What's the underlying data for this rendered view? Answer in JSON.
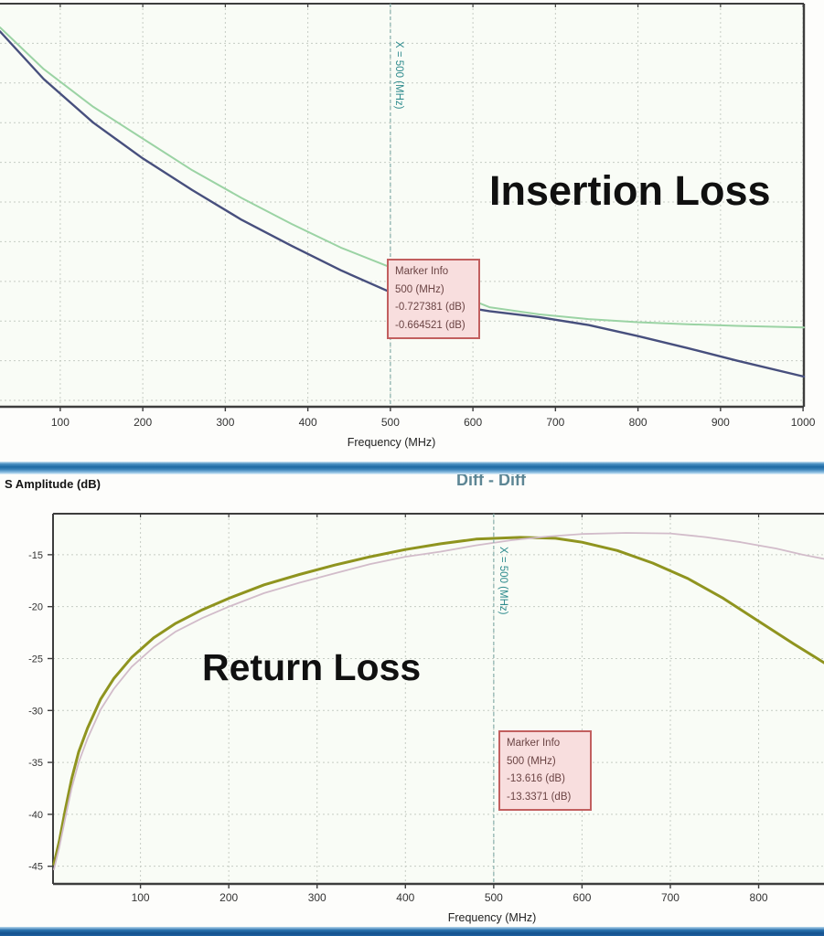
{
  "window": {
    "divider_bar_color": "#1d6aa4",
    "bottom_bar_color": "#15528f",
    "plot_background": "#f9fcf6",
    "grid_color": "#c6ccc4",
    "axis_color": "#3d3d3d",
    "marker_line_color": "#8fb4b0",
    "marker_text_color": "#2e8b8d",
    "marker_box_bg": "#f8dede",
    "marker_box_border": "#c25f5f"
  },
  "chart_data": [
    {
      "type": "line",
      "id": "insertion-loss",
      "overlay_title": "Insertion Loss",
      "xlabel": "Frequency (MHz)",
      "x_ticks": [
        100,
        200,
        300,
        400,
        500,
        600,
        700,
        800,
        900,
        1000
      ],
      "x_range": [
        27,
        1001
      ],
      "y_range": [
        0,
        -1.016
      ],
      "grid_y": [
        -0.1,
        -0.2,
        -0.3,
        -0.4,
        -0.5,
        -0.6,
        -0.7,
        -0.8,
        -0.9,
        -1.0
      ],
      "grid_on": true,
      "legend": "none",
      "marker": {
        "x": 500,
        "line_label": "X = 500 (MHz)",
        "info_lines": [
          "Marker Info",
          "500 (MHz)",
          "-0.727381 (dB)",
          "-0.664521 (dB)"
        ]
      },
      "series": [
        {
          "name": "trace-navy",
          "color": "#474f7d",
          "width": 2.4,
          "points": [
            [
              27,
              -0.07
            ],
            [
              80,
              -0.19
            ],
            [
              140,
              -0.3
            ],
            [
              200,
              -0.39
            ],
            [
              260,
              -0.47
            ],
            [
              320,
              -0.545
            ],
            [
              380,
              -0.61
            ],
            [
              440,
              -0.672
            ],
            [
              500,
              -0.7274
            ],
            [
              560,
              -0.755
            ],
            [
              620,
              -0.775
            ],
            [
              680,
              -0.79
            ],
            [
              740,
              -0.81
            ],
            [
              800,
              -0.838
            ],
            [
              860,
              -0.868
            ],
            [
              920,
              -0.9
            ],
            [
              1001,
              -0.94
            ]
          ]
        },
        {
          "name": "trace-green",
          "color": "#9bd3a4",
          "width": 2,
          "points": [
            [
              27,
              -0.06
            ],
            [
              80,
              -0.165
            ],
            [
              140,
              -0.26
            ],
            [
              200,
              -0.34
            ],
            [
              260,
              -0.42
            ],
            [
              320,
              -0.49
            ],
            [
              380,
              -0.555
            ],
            [
              440,
              -0.615
            ],
            [
              500,
              -0.6645
            ],
            [
              560,
              -0.715
            ],
            [
              620,
              -0.765
            ],
            [
              680,
              -0.783
            ],
            [
              740,
              -0.795
            ],
            [
              800,
              -0.803
            ],
            [
              860,
              -0.808
            ],
            [
              920,
              -0.812
            ],
            [
              1001,
              -0.816
            ]
          ]
        }
      ]
    },
    {
      "type": "line",
      "id": "return-loss",
      "title": "Diff - Diff",
      "overlay_title": "Return Loss",
      "ylabel": "S Amplitude (dB)",
      "xlabel": "Frequency (MHz)",
      "x_ticks": [
        100,
        200,
        300,
        400,
        500,
        600,
        700,
        800
      ],
      "y_ticks": [
        -15,
        -20,
        -25,
        -30,
        -35,
        -40,
        -45
      ],
      "x_range": [
        1,
        874
      ],
      "y_range": [
        -11.05,
        -46.7
      ],
      "grid_on": true,
      "legend": "none",
      "marker": {
        "x": 500,
        "line_label": "X = 500 (MHz)",
        "info_lines": [
          "Marker Info",
          "500 (MHz)",
          "-13.616 (dB)",
          "-13.3371 (dB)"
        ]
      },
      "series": [
        {
          "name": "trace-olive",
          "color": "#8f941f",
          "width": 3,
          "points": [
            [
              2,
              -44.8
            ],
            [
              8,
              -42.6
            ],
            [
              15,
              -39.5
            ],
            [
              22,
              -36.6
            ],
            [
              30,
              -34.0
            ],
            [
              40,
              -31.7
            ],
            [
              55,
              -28.9
            ],
            [
              70,
              -26.9
            ],
            [
              90,
              -24.9
            ],
            [
              115,
              -23.0
            ],
            [
              140,
              -21.6
            ],
            [
              170,
              -20.3
            ],
            [
              200,
              -19.2
            ],
            [
              240,
              -17.9
            ],
            [
              280,
              -16.9
            ],
            [
              320,
              -16.0
            ],
            [
              360,
              -15.2
            ],
            [
              400,
              -14.5
            ],
            [
              440,
              -13.95
            ],
            [
              480,
              -13.5
            ],
            [
              530,
              -13.33
            ],
            [
              570,
              -13.42
            ],
            [
              600,
              -13.8
            ],
            [
              640,
              -14.6
            ],
            [
              680,
              -15.8
            ],
            [
              720,
              -17.3
            ],
            [
              760,
              -19.2
            ],
            [
              800,
              -21.4
            ],
            [
              840,
              -23.6
            ],
            [
              874,
              -25.4
            ]
          ]
        },
        {
          "name": "trace-pink",
          "color": "#d2bcca",
          "width": 1.8,
          "points": [
            [
              2,
              -45.3
            ],
            [
              8,
              -43.2
            ],
            [
              15,
              -40.3
            ],
            [
              22,
              -37.5
            ],
            [
              30,
              -35.0
            ],
            [
              40,
              -32.7
            ],
            [
              55,
              -29.9
            ],
            [
              70,
              -27.9
            ],
            [
              90,
              -25.8
            ],
            [
              115,
              -23.9
            ],
            [
              140,
              -22.4
            ],
            [
              170,
              -21.1
            ],
            [
              200,
              -20.0
            ],
            [
              240,
              -18.7
            ],
            [
              280,
              -17.7
            ],
            [
              320,
              -16.8
            ],
            [
              360,
              -15.9
            ],
            [
              400,
              -15.2
            ],
            [
              440,
              -14.7
            ],
            [
              480,
              -14.1
            ],
            [
              520,
              -13.6
            ],
            [
              560,
              -13.25
            ],
            [
              600,
              -13.0
            ],
            [
              650,
              -12.9
            ],
            [
              700,
              -12.95
            ],
            [
              740,
              -13.3
            ],
            [
              780,
              -13.8
            ],
            [
              820,
              -14.4
            ],
            [
              850,
              -15.0
            ],
            [
              874,
              -15.4
            ]
          ]
        }
      ]
    }
  ]
}
